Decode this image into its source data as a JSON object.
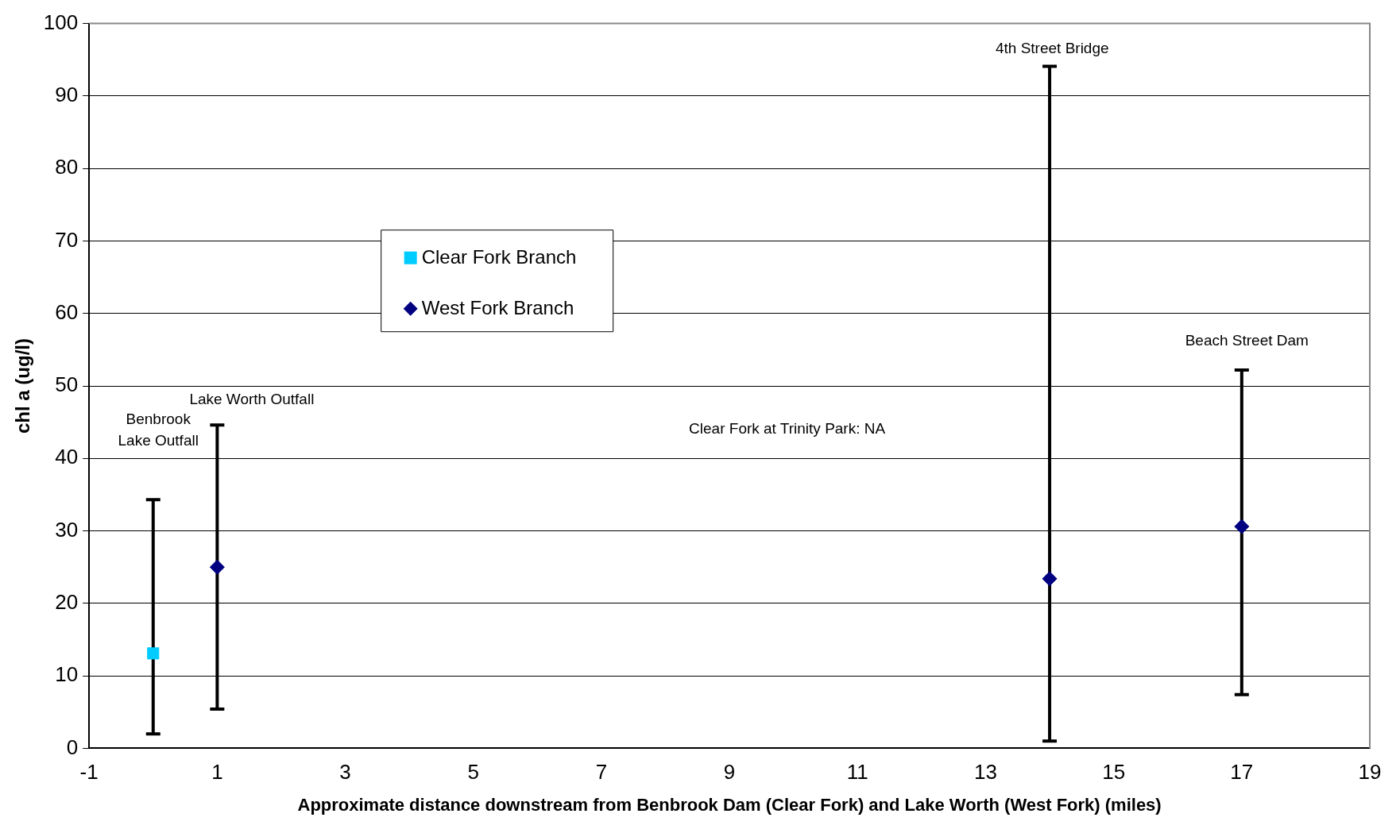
{
  "chart_data": {
    "type": "scatter",
    "xlabel": "Approximate distance downstream from Benbrook Dam (Clear Fork) and Lake Worth (West Fork) (miles)",
    "ylabel": "chl a (ug/l)",
    "xlim": [
      -1,
      19
    ],
    "xticks": [
      -1,
      1,
      3,
      5,
      7,
      9,
      11,
      13,
      15,
      17,
      19
    ],
    "ylim": [
      0,
      100
    ],
    "yticks": [
      0,
      10,
      20,
      30,
      40,
      50,
      60,
      70,
      80,
      90,
      100
    ],
    "grid": "y",
    "legend": "top left",
    "series": [
      {
        "name": "Clear Fork Branch",
        "color": "#00ccff",
        "marker": "square",
        "x": [
          0
        ],
        "values": [
          13.1
        ],
        "errors": [
          [
            2.0,
            34.3
          ]
        ]
      },
      {
        "name": "West Fork Branch",
        "color": "#000080",
        "marker": "diamond",
        "x": [
          1,
          14,
          17
        ],
        "values": [
          25.0,
          23.4,
          30.6
        ],
        "errors": [
          [
            5.4,
            44.6
          ],
          [
            1.0,
            94.1
          ],
          [
            7.4,
            52.2
          ]
        ]
      }
    ],
    "annotations": [
      "Benbrook\nLake Outfall",
      "Lake Worth Outfall",
      "4th Street Bridge",
      "Beach Street Dam",
      "Clear Fork at Trinity Park: NA"
    ]
  }
}
